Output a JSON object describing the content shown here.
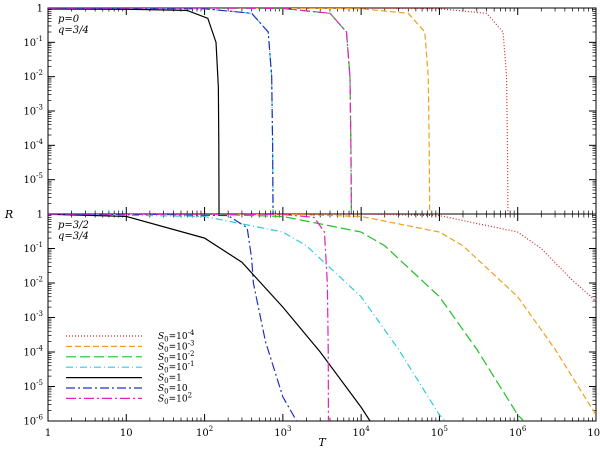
{
  "chart_data": {
    "type": "line",
    "xlabel": "T",
    "ylabel": "R",
    "xscale": "log",
    "yscale": "log",
    "xlim": [
      1,
      10000000
    ],
    "ylim": [
      1e-06,
      1
    ],
    "x_tick_labels": [
      "1",
      "10",
      "10",
      "10",
      "10",
      "10",
      "10",
      "10"
    ],
    "x_tick_exponents": [
      "",
      "",
      "2",
      "3",
      "4",
      "5",
      "6",
      "7"
    ],
    "y_tick_labels": [
      "1",
      "10",
      "10",
      "10",
      "10",
      "10",
      "10"
    ],
    "y_tick_exponents": [
      "",
      "-1",
      "-2",
      "-3",
      "-4",
      "-5",
      "-6"
    ],
    "legend_position": "bottom-left (lower panel)",
    "series_styles": [
      {
        "name": "S₀=10⁻⁴",
        "label_base": "S",
        "label_sub": "0",
        "label_rest": "=10",
        "label_sup": "-4",
        "color": "#d62020",
        "dash": "1,2",
        "width": 1.2
      },
      {
        "name": "S₀=10⁻³",
        "label_base": "S",
        "label_sub": "0",
        "label_rest": "=10",
        "label_sup": "-3",
        "color": "#f0a020",
        "dash": "6,3",
        "width": 1.2
      },
      {
        "name": "S₀=10⁻²",
        "label_base": "S",
        "label_sub": "0",
        "label_rest": "=10",
        "label_sup": "-2",
        "color": "#20c020",
        "dash": "10,4",
        "width": 1.2
      },
      {
        "name": "S₀=10⁻¹",
        "label_base": "S",
        "label_sub": "0",
        "label_rest": "=10",
        "label_sup": "-1",
        "color": "#30c8e0",
        "dash": "7,3,1,3",
        "width": 1.2
      },
      {
        "name": "S₀=1",
        "label_base": "S",
        "label_sub": "0",
        "label_rest": "=1",
        "label_sup": "",
        "color": "#000000",
        "dash": "",
        "width": 1.2
      },
      {
        "name": "S₀=10",
        "label_base": "S",
        "label_sub": "0",
        "label_rest": "=10",
        "label_sup": "",
        "color": "#2030c0",
        "dash": "9,3,2,3",
        "width": 1.2
      },
      {
        "name": "S₀=10²",
        "label_base": "S",
        "label_sub": "0",
        "label_rest": "=10",
        "label_sup": "2",
        "color": "#e020c0",
        "dash": "10,3,2,3",
        "width": 1.2
      }
    ],
    "panels": [
      {
        "label_p": "p=0",
        "label_q": "q=3/4",
        "series": [
          {
            "name": "S₀=10⁻⁴",
            "x": [
              1,
              100,
              10000,
              100000,
              400000,
              650000,
              720000,
              740000,
              750000
            ],
            "y": [
              1,
              1,
              1,
              0.95,
              0.7,
              0.2,
              0.01,
              0.0001,
              1e-06
            ]
          },
          {
            "name": "S₀=10⁻³",
            "x": [
              1,
              100,
              1000,
              10000,
              40000,
              65000,
              72000,
              74000,
              75000
            ],
            "y": [
              1,
              1,
              1,
              0.95,
              0.7,
              0.2,
              0.01,
              0.0001,
              1e-06
            ]
          },
          {
            "name": "S₀=10⁻²",
            "x": [
              1,
              100,
              1000,
              4000,
              6500,
              7200,
              7400,
              7500
            ],
            "y": [
              1,
              1,
              0.97,
              0.7,
              0.2,
              0.01,
              0.0001,
              1e-06
            ]
          },
          {
            "name": "S₀=10⁻¹",
            "x": [
              1,
              10,
              100,
              400,
              650,
              720,
              740,
              750
            ],
            "y": [
              0.98,
              0.97,
              0.95,
              0.7,
              0.2,
              0.01,
              0.0001,
              1e-06
            ]
          },
          {
            "name": "S₀=1",
            "x": [
              1,
              10,
              60,
              110,
              140,
              150,
              152,
              153
            ],
            "y": [
              0.93,
              0.92,
              0.85,
              0.5,
              0.1,
              0.005,
              0.0001,
              1e-06
            ]
          },
          {
            "name": "S₀=10",
            "x": [
              1,
              10,
              100,
              400,
              650,
              720,
              740,
              750
            ],
            "y": [
              0.98,
              0.97,
              0.95,
              0.7,
              0.2,
              0.01,
              0.0001,
              1e-06
            ]
          },
          {
            "name": "S₀=10²",
            "x": [
              1,
              100,
              1000,
              4000,
              6500,
              7200,
              7400,
              7500
            ],
            "y": [
              1,
              1,
              0.97,
              0.7,
              0.2,
              0.01,
              0.0001,
              1e-06
            ]
          }
        ]
      },
      {
        "label_p": "p=3/2",
        "label_q": "q=3/4",
        "series": [
          {
            "name": "S₀=10⁻⁴",
            "x": [
              1,
              10000,
              100000,
              1000000,
              2000000,
              5000000,
              10000000
            ],
            "y": [
              1,
              1,
              0.9,
              0.3,
              0.1,
              0.012,
              0.003
            ]
          },
          {
            "name": "S₀=10⁻³",
            "x": [
              1,
              1000,
              10000,
              100000,
              200000,
              1000000,
              3000000,
              10000000
            ],
            "y": [
              1,
              0.99,
              0.85,
              0.3,
              0.12,
              0.004,
              0.00012,
              1.5e-06
            ]
          },
          {
            "name": "S₀=10⁻²",
            "x": [
              1,
              100,
              1000,
              10000,
              20000,
              100000,
              300000,
              1000000,
              1200000
            ],
            "y": [
              1,
              0.99,
              0.85,
              0.3,
              0.12,
              0.004,
              0.00012,
              1.5e-06,
              1e-06
            ]
          },
          {
            "name": "S₀=10⁻¹",
            "x": [
              1,
              100,
              1000,
              2000,
              10000,
              30000,
              100000,
              120000
            ],
            "y": [
              0.99,
              0.85,
              0.3,
              0.12,
              0.004,
              0.00012,
              1.5e-06,
              1e-06
            ]
          },
          {
            "name": "S₀=1",
            "x": [
              1,
              10,
              100,
              300,
              1000,
              3000,
              10000,
              13000
            ],
            "y": [
              0.98,
              0.85,
              0.2,
              0.04,
              0.002,
              0.0001,
              2.5e-06,
              1e-06
            ]
          },
          {
            "name": "S₀=10",
            "x": [
              1,
              30,
              200,
              350,
              400,
              420,
              600,
              1000,
              1500
            ],
            "y": [
              0.98,
              0.97,
              0.9,
              0.4,
              0.05,
              0.01,
              0.0002,
              5e-06,
              1e-06
            ]
          },
          {
            "name": "S₀=10²",
            "x": [
              1,
              100,
              1000,
              2500,
              3400,
              3700,
              3800,
              3820
            ],
            "y": [
              1,
              0.99,
              0.97,
              0.8,
              0.3,
              0.01,
              0.0001,
              1e-06
            ]
          }
        ]
      }
    ]
  }
}
